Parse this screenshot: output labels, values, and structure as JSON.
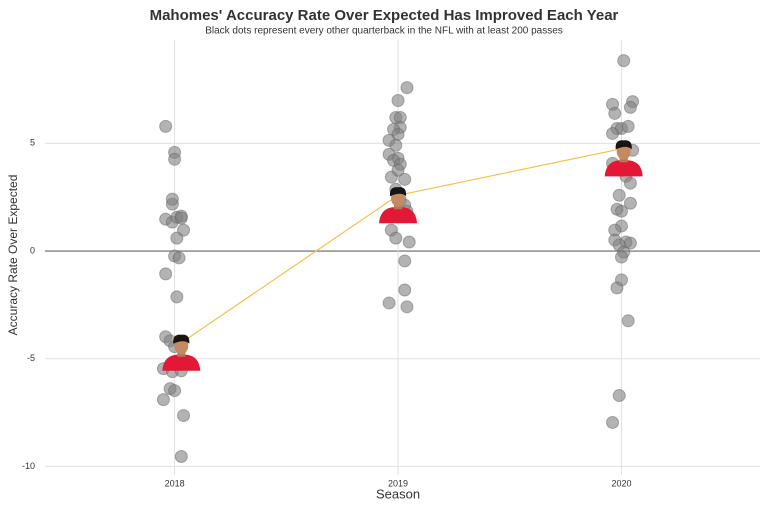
{
  "chart_data": {
    "type": "scatter",
    "title": "Mahomes' Accuracy Rate Over Expected Has Improved Each Year",
    "subtitle": "Black dots represent every other quarterback in the NFL with at least 200 passes",
    "x_label": "Season",
    "y_label": "Accuracy Rate Over Expected",
    "xlim": [
      2017.42,
      2020.62
    ],
    "xticks": [
      2018,
      2019,
      2020
    ],
    "ylim": [
      -10.4,
      9.8
    ],
    "yticks": [
      -10,
      -5,
      0,
      5
    ],
    "grid": true,
    "zero_line": true,
    "series": [
      {
        "color": "#808080",
        "x": [
          2017.96,
          2018.0,
          2018.0,
          2017.99,
          2017.99,
          2017.96,
          2017.99,
          2018.01,
          2018.03,
          2018.03,
          2018.04,
          2018.01,
          2018.0,
          2018.02,
          2017.96,
          2018.01,
          2017.96,
          2017.98,
          2018.0,
          2017.95,
          2017.99,
          2018.03,
          2017.98,
          2018.0,
          2017.95,
          2018.04,
          2018.03,
          2019.04,
          2019.0,
          2018.99,
          2019.01,
          2019.01,
          2018.98,
          2019.0,
          2018.96,
          2018.99,
          2018.96,
          2019.0,
          2018.98,
          2019.01,
          2019.0,
          2018.97,
          2019.03,
          2018.99,
          2019.01,
          2019.03,
          2019.04,
          2018.97,
          2018.99,
          2019.05,
          2019.03,
          2019.03,
          2018.96,
          2019.04,
          2020.01,
          2020.05,
          2019.96,
          2020.04,
          2019.97,
          2019.98,
          2020.0,
          2020.03,
          2019.96,
          2020.05,
          2019.96,
          2020.0,
          2020.02,
          2020.04,
          2019.99,
          2020.04,
          2019.98,
          2020.0,
          2020.0,
          2019.97,
          2019.97,
          2020.02,
          2020.04,
          2019.99,
          2020.01,
          2020.0,
          2020.0,
          2019.98,
          2020.03,
          2019.99,
          2019.96
        ],
        "values": [
          5.79,
          4.58,
          4.26,
          2.18,
          2.41,
          1.48,
          1.34,
          1.57,
          1.62,
          1.53,
          0.97,
          0.6,
          -0.23,
          -0.32,
          -1.06,
          -2.13,
          -3.98,
          -4.17,
          -4.44,
          -5.46,
          -5.6,
          -5.56,
          -6.39,
          -6.48,
          -6.9,
          -7.64,
          -9.54,
          7.59,
          6.99,
          6.2,
          6.2,
          5.74,
          5.65,
          5.42,
          5.14,
          4.91,
          4.49,
          4.31,
          4.21,
          4.03,
          3.75,
          3.43,
          3.33,
          2.87,
          2.36,
          2.13,
          1.85,
          0.97,
          0.6,
          0.42,
          -0.46,
          -1.81,
          -2.41,
          -2.59,
          8.84,
          6.94,
          6.81,
          6.67,
          6.39,
          5.69,
          5.69,
          5.79,
          5.46,
          4.68,
          4.07,
          3.75,
          3.47,
          3.15,
          2.59,
          2.22,
          1.94,
          1.85,
          1.16,
          0.97,
          0.51,
          0.42,
          0.37,
          0.28,
          -0.05,
          -0.28,
          -1.34,
          -1.71,
          -3.24,
          -6.71,
          -7.96
        ]
      },
      {
        "color": "#f5c04a",
        "marker_color": "#e31837",
        "x": [
          2018.03,
          2019.0,
          2020.01
        ],
        "values": [
          -4.26,
          2.59,
          4.77
        ]
      }
    ]
  }
}
